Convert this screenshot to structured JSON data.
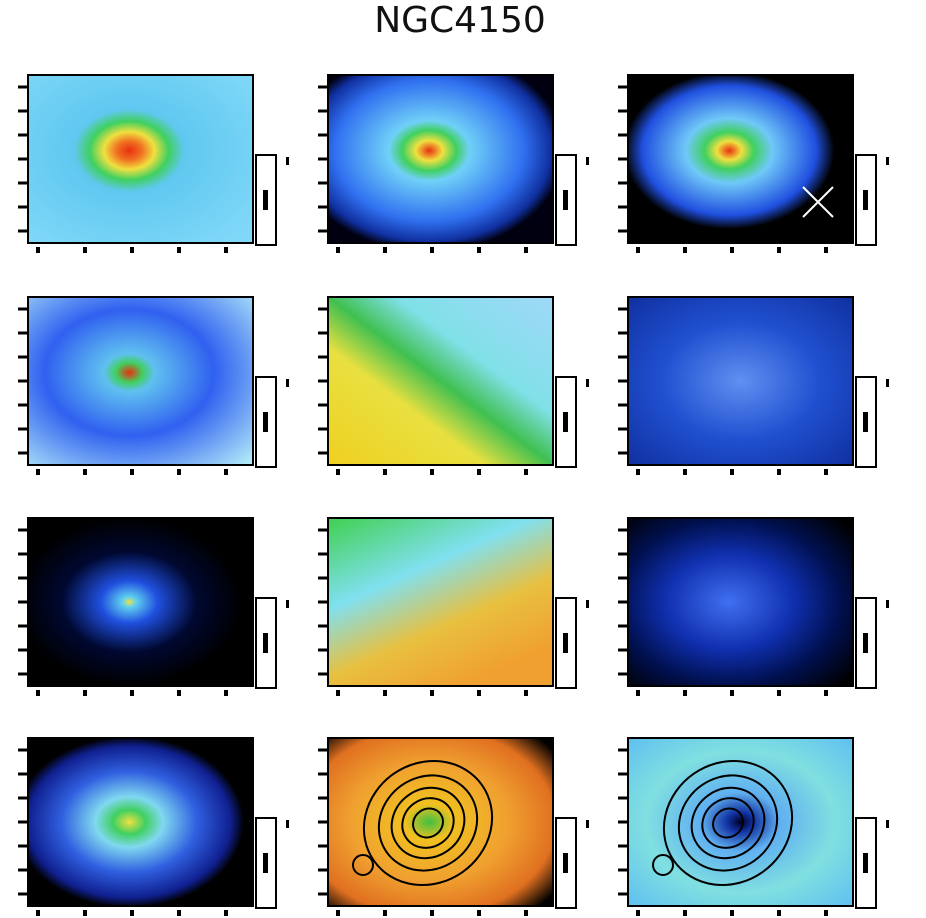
{
  "figure": {
    "title": "NGC4150"
  }
}
